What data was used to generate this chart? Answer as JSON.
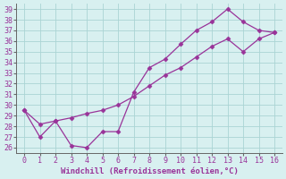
{
  "xlabel": "Windchill (Refroidissement éolien,°C)",
  "line1_x": [
    0,
    1,
    2,
    3,
    4,
    5,
    6,
    7,
    8,
    9,
    10,
    11,
    12,
    13,
    14,
    15,
    16
  ],
  "line1_y": [
    29.5,
    27.0,
    28.5,
    26.2,
    26.0,
    27.5,
    27.5,
    31.2,
    33.5,
    34.3,
    35.7,
    37.0,
    37.8,
    39.0,
    37.8,
    37.0,
    36.8
  ],
  "line2_x": [
    0,
    1,
    2,
    3,
    4,
    5,
    6,
    7,
    8,
    9,
    10,
    11,
    12,
    13,
    14,
    15,
    16
  ],
  "line2_y": [
    29.5,
    28.2,
    28.5,
    28.8,
    29.2,
    29.5,
    30.0,
    30.8,
    31.8,
    32.8,
    33.5,
    34.5,
    35.5,
    36.2,
    35.0,
    36.2,
    36.8
  ],
  "line_color": "#993399",
  "bg_color": "#d8f0f0",
  "grid_color": "#aad4d4",
  "xlim": [
    -0.5,
    16.5
  ],
  "ylim": [
    25.5,
    39.5
  ],
  "yticks": [
    26,
    27,
    28,
    29,
    30,
    31,
    32,
    33,
    34,
    35,
    36,
    37,
    38,
    39
  ],
  "xticks": [
    0,
    1,
    2,
    3,
    4,
    5,
    6,
    7,
    8,
    9,
    10,
    11,
    12,
    13,
    14,
    15,
    16
  ],
  "xlabel_fontsize": 6.5,
  "tick_fontsize": 6.0,
  "marker": "D",
  "marker_size": 2.5
}
